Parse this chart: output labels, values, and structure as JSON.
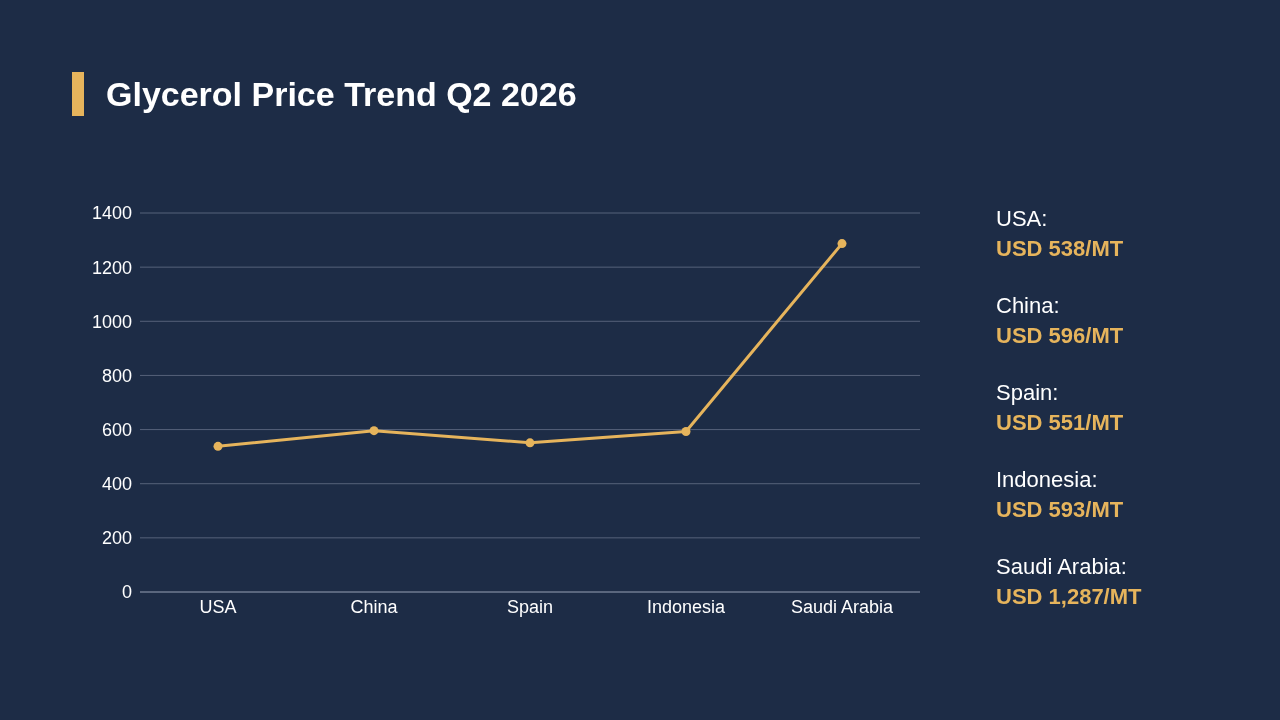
{
  "chart_data": {
    "type": "line",
    "title": "Glycerol Price Trend Q2 2026",
    "categories": [
      "USA",
      "China",
      "Spain",
      "Indonesia",
      "Saudi Arabia"
    ],
    "series": [
      {
        "color": "#e6b45c",
        "values": [
          538,
          596,
          551,
          593,
          1287
        ]
      }
    ],
    "annotations": [
      "USA:",
      "USD 538/MT",
      "China:",
      "USD 596/MT",
      "Spain:",
      "USD 551/MT",
      "Indonesia:",
      "USD 593/MT",
      "Saudi Arabia:",
      "USD 1,287/MT"
    ],
    "ylim": [
      0,
      1400
    ],
    "yticks": [
      0,
      200,
      400,
      600,
      800,
      1000,
      1200,
      1400
    ],
    "grid": "y",
    "legend": false,
    "marker": "circle",
    "line_style": "solid"
  }
}
